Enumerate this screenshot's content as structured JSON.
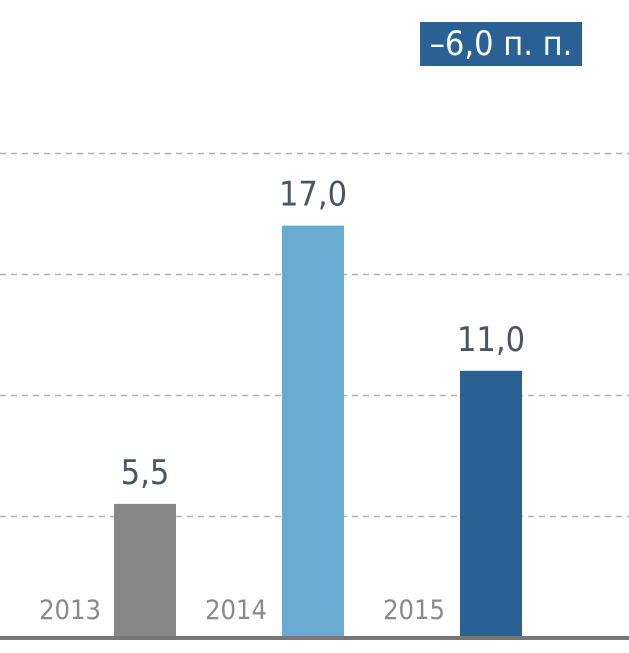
{
  "chart_data": {
    "type": "bar",
    "categories": [
      "2013",
      "2014",
      "2015"
    ],
    "values": [
      5.5,
      17.0,
      11.0
    ],
    "value_labels": [
      "5,5",
      "17,0",
      "11,0"
    ],
    "ylim": [
      0,
      20
    ],
    "y_grid_step": 5,
    "grid": true,
    "grid_style": "dashed",
    "colors": [
      "#878787",
      "#6aabd2",
      "#2a6195"
    ],
    "axis_color": "#777777",
    "title": "",
    "xlabel": "",
    "ylabel": ""
  },
  "badge": {
    "text": "–6,0 п. п.",
    "color": "#2a6195"
  },
  "colors": {
    "value_label": "#4a5462",
    "category_label": "#8a8a8a",
    "grid": "#b0b0b0",
    "background": "#ffffff"
  }
}
